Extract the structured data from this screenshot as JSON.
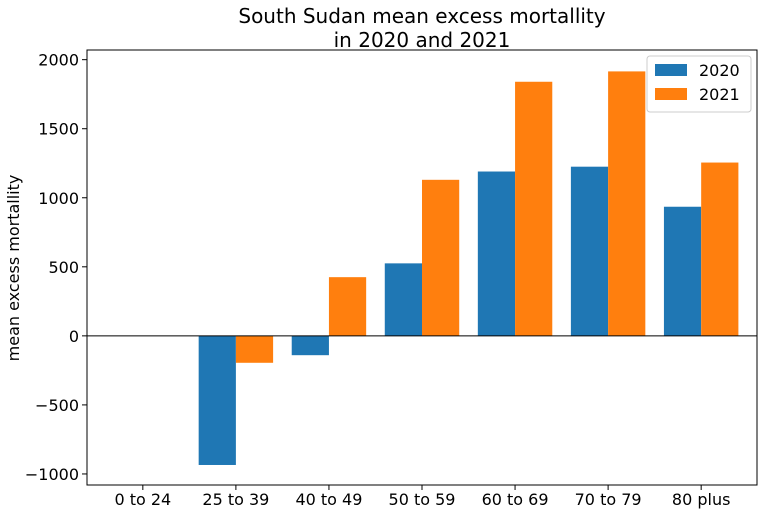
{
  "chart_data": {
    "type": "bar",
    "title_lines": [
      "South Sudan mean excess mortallity",
      "in 2020 and 2021"
    ],
    "xlabel": "",
    "ylabel": "mean excess mortallity",
    "categories": [
      "0 to 24",
      "25 to 39",
      "40 to 49",
      "50 to 59",
      "60 to 69",
      "70 to 79",
      "80 plus"
    ],
    "series": [
      {
        "name": "2020",
        "color": "#1f77b4",
        "values": [
          0,
          -935,
          -140,
          525,
          1190,
          1225,
          935
        ]
      },
      {
        "name": "2021",
        "color": "#ff7f0e",
        "values": [
          0,
          -195,
          425,
          1130,
          1840,
          1915,
          1255
        ]
      }
    ],
    "ylim": [
      -1080,
      2070
    ],
    "yticks": [
      -1000,
      -500,
      0,
      500,
      1000,
      1500,
      2000
    ],
    "ytick_labels": [
      "−1000",
      "−500",
      "0",
      "500",
      "1000",
      "1500",
      "2000"
    ],
    "zero_line": true,
    "grid": false,
    "legend_position": "top-right"
  }
}
